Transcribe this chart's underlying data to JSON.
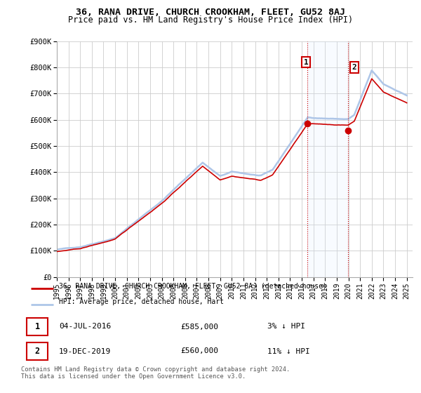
{
  "title": "36, RANA DRIVE, CHURCH CROOKHAM, FLEET, GU52 8AJ",
  "subtitle": "Price paid vs. HM Land Registry's House Price Index (HPI)",
  "ylabel_ticks": [
    "£0",
    "£100K",
    "£200K",
    "£300K",
    "£400K",
    "£500K",
    "£600K",
    "£700K",
    "£800K",
    "£900K"
  ],
  "ytick_vals": [
    0,
    100000,
    200000,
    300000,
    400000,
    500000,
    600000,
    700000,
    800000,
    900000
  ],
  "ylim": [
    0,
    900000
  ],
  "xlim_start": 1995.0,
  "xlim_end": 2025.5,
  "hpi_color": "#aec6e8",
  "price_color": "#cc0000",
  "marker1_x": 2016.5,
  "marker1_y": 585000,
  "marker2_x": 2019.96,
  "marker2_y": 560000,
  "legend_line1": "36, RANA DRIVE, CHURCH CROOKHAM, FLEET, GU52 8AJ (detached house)",
  "legend_line2": "HPI: Average price, detached house, Hart",
  "note1_label": "1",
  "note1_date": "04-JUL-2016",
  "note1_price": "£585,000",
  "note1_rel": "3% ↓ HPI",
  "note2_label": "2",
  "note2_date": "19-DEC-2019",
  "note2_price": "£560,000",
  "note2_rel": "11% ↓ HPI",
  "footer": "Contains HM Land Registry data © Crown copyright and database right 2024.\nThis data is licensed under the Open Government Licence v3.0.",
  "background_color": "#ffffff",
  "grid_color": "#cccccc",
  "span_color": "#ddeeff",
  "base_hpi": 105000,
  "seed": 42
}
